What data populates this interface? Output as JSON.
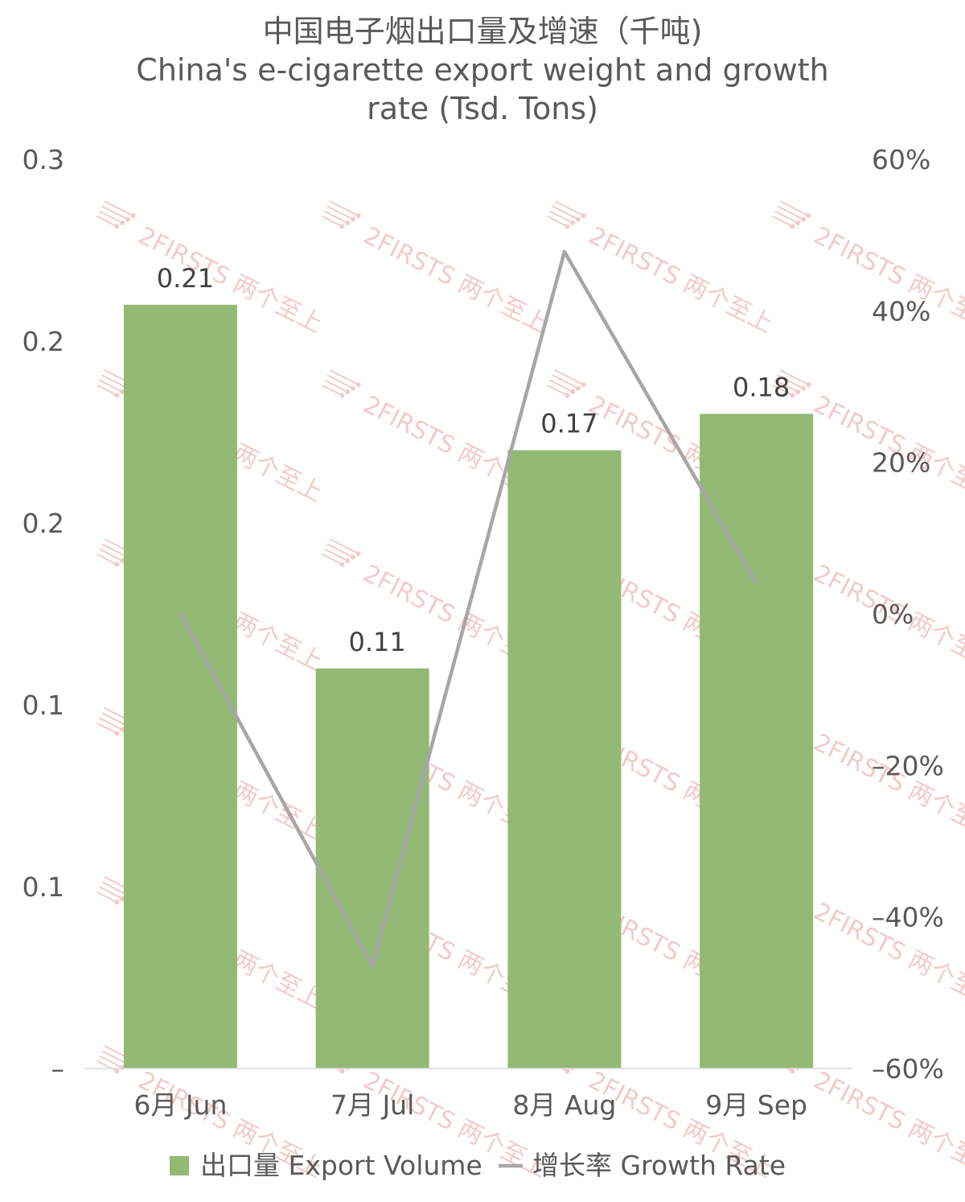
{
  "chart_data": {
    "type": "bar",
    "title_cn": "中国电子烟出口量及增速（千吨)",
    "title_en_line1": "China's e-cigarette export weight and growth",
    "title_en_line2": "rate (Tsd. Tons)",
    "categories": [
      "6月 Jun",
      "7月 Jul",
      "8月 Aug",
      "9月 Sep"
    ],
    "series": [
      {
        "name": "出口量 Export Volume",
        "kind": "bar",
        "axis": "left",
        "values": [
          0.21,
          0.11,
          0.17,
          0.18
        ],
        "data_labels": [
          "0.21",
          "0.11",
          "0.17",
          "0.18"
        ],
        "color": "#93b975"
      },
      {
        "name": "增长率 Growth Rate",
        "kind": "line",
        "axis": "right",
        "values": [
          0.0,
          -0.465,
          0.478,
          0.04
        ],
        "color": "#a6a6a6"
      }
    ],
    "y_left": {
      "min": 0,
      "max": 0.25,
      "ticks": [
        0,
        0.05,
        0.1,
        0.15,
        0.2,
        0.25
      ],
      "tick_labels": [
        "–",
        "0.1",
        "0.1",
        "0.2",
        "0.2",
        "0.3"
      ]
    },
    "y_right": {
      "min": -0.6,
      "max": 0.6,
      "ticks": [
        -0.6,
        -0.4,
        -0.2,
        0,
        0.2,
        0.4,
        0.6
      ],
      "tick_labels": [
        "–60%",
        "–40%",
        "–20%",
        "0%",
        "20%",
        "40%",
        "60%"
      ]
    },
    "grid": false,
    "legend_position": "bottom",
    "watermark_text": "2FIRSTS 两个至上",
    "colors": {
      "axis_text": "#595959",
      "axis_line": "#d9d9d9",
      "watermark": "#e9a0a0"
    }
  }
}
